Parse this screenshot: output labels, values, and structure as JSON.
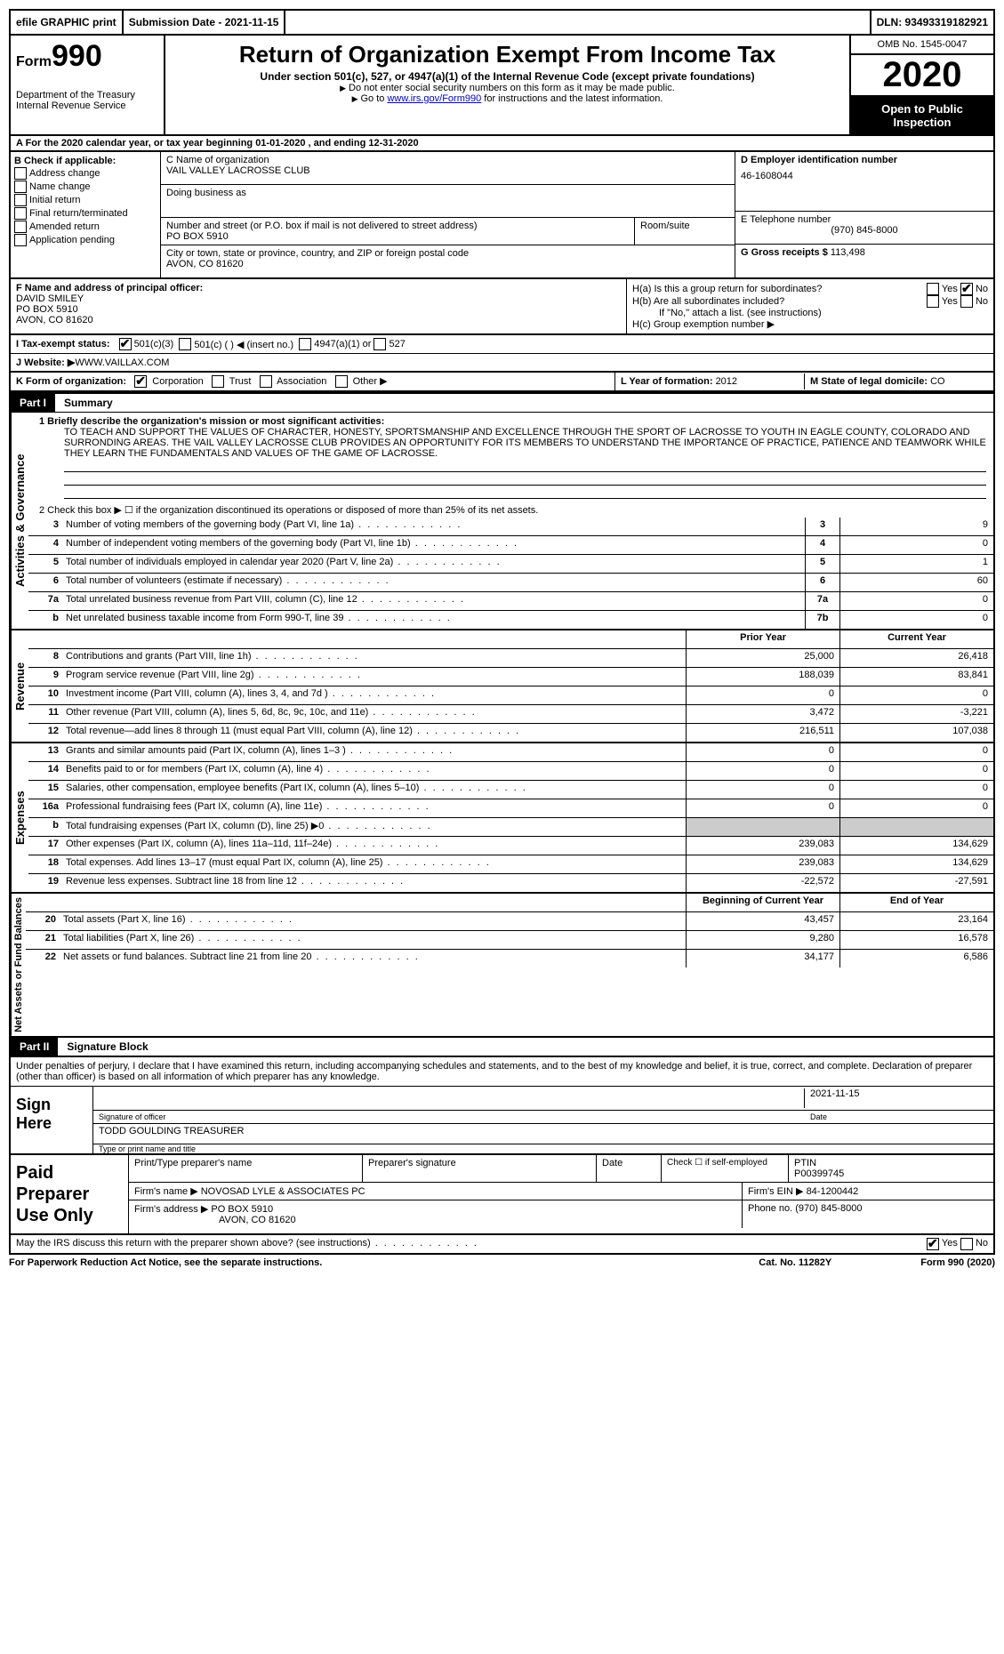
{
  "top": {
    "efile": "efile GRAPHIC print",
    "submission": "Submission Date - 2021-11-15",
    "dln": "DLN: 93493319182921"
  },
  "header": {
    "form_label": "Form",
    "form_num": "990",
    "dept": "Department of the Treasury",
    "irs": "Internal Revenue Service",
    "title": "Return of Organization Exempt From Income Tax",
    "subtitle": "Under section 501(c), 527, or 4947(a)(1) of the Internal Revenue Code (except private foundations)",
    "note1": "Do not enter social security numbers on this form as it may be made public.",
    "note2_pre": "Go to ",
    "note2_link": "www.irs.gov/Form990",
    "note2_post": " for instructions and the latest information.",
    "omb": "OMB No. 1545-0047",
    "year": "2020",
    "open": "Open to Public Inspection"
  },
  "row_a": "A   For the 2020 calendar year, or tax year beginning 01-01-2020    , and ending 12-31-2020",
  "col_b": {
    "label": "B Check if applicable:",
    "items": [
      "Address change",
      "Name change",
      "Initial return",
      "Final return/terminated",
      "Amended return",
      "Application pending"
    ]
  },
  "col_c": {
    "name_label": "C Name of organization",
    "name": "VAIL VALLEY LACROSSE CLUB",
    "dba_label": "Doing business as",
    "dba": "",
    "street_label": "Number and street (or P.O. box if mail is not delivered to street address)",
    "street": "PO BOX 5910",
    "room_label": "Room/suite",
    "city_label": "City or town, state or province, country, and ZIP or foreign postal code",
    "city": "AVON, CO  81620"
  },
  "col_right": {
    "ein_label": "D Employer identification number",
    "ein": "46-1608044",
    "tel_label": "E Telephone number",
    "tel": "(970) 845-8000",
    "gross_label": "G Gross receipts $ ",
    "gross": "113,498"
  },
  "block_f": {
    "label": "F  Name and address of principal officer:",
    "name": "DAVID SMILEY",
    "addr1": "PO BOX 5910",
    "addr2": "AVON, CO  81620",
    "ha": "H(a)  Is this a group return for subordinates?",
    "hb": "H(b) Are all subordinates included?",
    "hb_note": "If \"No,\" attach a list. (see instructions)",
    "hc": "H(c)  Group exemption number ▶",
    "yes": "Yes",
    "no": "No"
  },
  "row_i": {
    "label": "I  Tax-exempt status:",
    "opts": [
      "501(c)(3)",
      "501(c) (  ) ◀ (insert no.)",
      "4947(a)(1) or",
      "527"
    ]
  },
  "row_j": {
    "label": "J  Website: ▶",
    "value": " WWW.VAILLAX.COM"
  },
  "row_k": {
    "label": "K Form of organization:",
    "opts": [
      "Corporation",
      "Trust",
      "Association",
      "Other ▶"
    ],
    "l_label": "L Year of formation: ",
    "l_val": "2012",
    "m_label": "M State of legal domicile: ",
    "m_val": "CO"
  },
  "parts": {
    "p1": "Part I",
    "p1_title": "Summary",
    "p2": "Part II",
    "p2_title": "Signature Block"
  },
  "summary": {
    "line1_label": "1  Briefly describe the organization's mission or most significant activities:",
    "mission": "TO TEACH AND SUPPORT THE VALUES OF CHARACTER, HONESTY, SPORTSMANSHIP AND EXCELLENCE THROUGH THE SPORT OF LACROSSE TO YOUTH IN EAGLE COUNTY, COLORADO AND SURRONDING AREAS. THE VAIL VALLEY LACROSSE CLUB PROVIDES AN OPPORTUNITY FOR ITS MEMBERS TO UNDERSTAND THE IMPORTANCE OF PRACTICE, PATIENCE AND TEAMWORK WHILE THEY LEARN THE FUNDAMENTALS AND VALUES OF THE GAME OF LACROSSE.",
    "line2": "2    Check this box ▶ ☐  if the organization discontinued its operations or disposed of more than 25% of its net assets.",
    "vert_ag": "Activities & Governance",
    "vert_rev": "Revenue",
    "vert_exp": "Expenses",
    "vert_net": "Net Assets or Fund Balances",
    "rows_ag": [
      {
        "n": "3",
        "d": "Number of voting members of the governing body (Part VI, line 1a)",
        "b": "3",
        "v": "9"
      },
      {
        "n": "4",
        "d": "Number of independent voting members of the governing body (Part VI, line 1b)",
        "b": "4",
        "v": "0"
      },
      {
        "n": "5",
        "d": "Total number of individuals employed in calendar year 2020 (Part V, line 2a)",
        "b": "5",
        "v": "1"
      },
      {
        "n": "6",
        "d": "Total number of volunteers (estimate if necessary)",
        "b": "6",
        "v": "60"
      },
      {
        "n": "7a",
        "d": "Total unrelated business revenue from Part VIII, column (C), line 12",
        "b": "7a",
        "v": "0"
      },
      {
        "n": "b",
        "d": "Net unrelated business taxable income from Form 990-T, line 39",
        "b": "7b",
        "v": "0"
      }
    ],
    "hdr_prior": "Prior Year",
    "hdr_current": "Current Year",
    "rows_rev": [
      {
        "n": "8",
        "d": "Contributions and grants (Part VIII, line 1h)",
        "p": "25,000",
        "c": "26,418"
      },
      {
        "n": "9",
        "d": "Program service revenue (Part VIII, line 2g)",
        "p": "188,039",
        "c": "83,841"
      },
      {
        "n": "10",
        "d": "Investment income (Part VIII, column (A), lines 3, 4, and 7d )",
        "p": "0",
        "c": "0"
      },
      {
        "n": "11",
        "d": "Other revenue (Part VIII, column (A), lines 5, 6d, 8c, 9c, 10c, and 11e)",
        "p": "3,472",
        "c": "-3,221"
      },
      {
        "n": "12",
        "d": "Total revenue—add lines 8 through 11 (must equal Part VIII, column (A), line 12)",
        "p": "216,511",
        "c": "107,038"
      }
    ],
    "rows_exp": [
      {
        "n": "13",
        "d": "Grants and similar amounts paid (Part IX, column (A), lines 1–3 )",
        "p": "0",
        "c": "0"
      },
      {
        "n": "14",
        "d": "Benefits paid to or for members (Part IX, column (A), line 4)",
        "p": "0",
        "c": "0"
      },
      {
        "n": "15",
        "d": "Salaries, other compensation, employee benefits (Part IX, column (A), lines 5–10)",
        "p": "0",
        "c": "0"
      },
      {
        "n": "16a",
        "d": "Professional fundraising fees (Part IX, column (A), line 11e)",
        "p": "0",
        "c": "0"
      },
      {
        "n": "b",
        "d": "Total fundraising expenses (Part IX, column (D), line 25) ▶0",
        "p": "",
        "c": ""
      },
      {
        "n": "17",
        "d": "Other expenses (Part IX, column (A), lines 11a–11d, 11f–24e)",
        "p": "239,083",
        "c": "134,629"
      },
      {
        "n": "18",
        "d": "Total expenses. Add lines 13–17 (must equal Part IX, column (A), line 25)",
        "p": "239,083",
        "c": "134,629"
      },
      {
        "n": "19",
        "d": "Revenue less expenses. Subtract line 18 from line 12",
        "p": "-22,572",
        "c": "-27,591"
      }
    ],
    "hdr_begin": "Beginning of Current Year",
    "hdr_end": "End of Year",
    "rows_net": [
      {
        "n": "20",
        "d": "Total assets (Part X, line 16)",
        "p": "43,457",
        "c": "23,164"
      },
      {
        "n": "21",
        "d": "Total liabilities (Part X, line 26)",
        "p": "9,280",
        "c": "16,578"
      },
      {
        "n": "22",
        "d": "Net assets or fund balances. Subtract line 21 from line 20",
        "p": "34,177",
        "c": "6,586"
      }
    ]
  },
  "sig": {
    "declaration": "Under penalties of perjury, I declare that I have examined this return, including accompanying schedules and statements, and to the best of my knowledge and belief, it is true, correct, and complete. Declaration of preparer (other than officer) is based on all information of which preparer has any knowledge.",
    "sign_here": "Sign Here",
    "sig_officer": "Signature of officer",
    "date_label": "Date",
    "sig_date": "2021-11-15",
    "name_title": "TODD GOULDING  TREASURER",
    "type_name": "Type or print name and title"
  },
  "paid": {
    "label": "Paid Preparer Use Only",
    "h1": "Print/Type preparer's name",
    "h2": "Preparer's signature",
    "h3": "Date",
    "h4_check": "Check ☐ if self-employed",
    "h5_ptin": "PTIN",
    "ptin": "P00399745",
    "firm_name_label": "Firm's name    ▶ ",
    "firm_name": "NOVOSAD LYLE & ASSOCIATES PC",
    "firm_ein_label": "Firm's EIN ▶ ",
    "firm_ein": "84-1200442",
    "firm_addr_label": "Firm's address ▶ ",
    "firm_addr1": "PO BOX 5910",
    "firm_addr2": "AVON, CO  81620",
    "phone_label": "Phone no. ",
    "phone": "(970) 845-8000"
  },
  "footer": {
    "may_irs": "May the IRS discuss this return with the preparer shown above? (see instructions)",
    "yes": "Yes",
    "no": "No",
    "paperwork": "For Paperwork Reduction Act Notice, see the separate instructions.",
    "cat": "Cat. No. 11282Y",
    "form": "Form 990 (2020)"
  }
}
